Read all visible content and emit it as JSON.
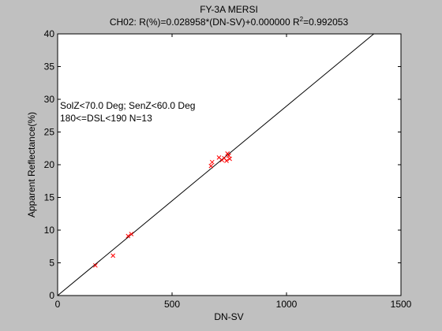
{
  "figure": {
    "background": "#c0c0c0",
    "plot_background": "#ffffff",
    "marker_color": "#ff0000",
    "line_color": "#000000"
  },
  "chart_data": {
    "type": "scatter",
    "title": "FY-3A MERSI",
    "subtitle_main": "CH02: R(%)=0.028958*(DN-SV)+0.000000 R",
    "subtitle_sup": "2",
    "subtitle_tail": "=0.992053",
    "xlabel": "DN-SV",
    "ylabel": "Apparent Reflectance(%)",
    "xlim": [
      0,
      1500
    ],
    "ylim": [
      0,
      40
    ],
    "xticks": [
      0,
      500,
      1000,
      1500
    ],
    "yticks": [
      0,
      5,
      10,
      15,
      20,
      25,
      30,
      35,
      40
    ],
    "grid": false,
    "fit_line": {
      "slope": 0.028958,
      "intercept": 0.0
    },
    "annotation_lines": [
      "SolZ<70.0 Deg; SenZ<60.0 Deg",
      "180<=DSL<190 N=13"
    ],
    "points": [
      {
        "x": 165,
        "y": 4.6
      },
      {
        "x": 242,
        "y": 6.1
      },
      {
        "x": 308,
        "y": 9.1
      },
      {
        "x": 322,
        "y": 9.4
      },
      {
        "x": 670,
        "y": 19.8
      },
      {
        "x": 675,
        "y": 20.4
      },
      {
        "x": 705,
        "y": 21.1
      },
      {
        "x": 718,
        "y": 20.7
      },
      {
        "x": 728,
        "y": 21.0
      },
      {
        "x": 738,
        "y": 20.6
      },
      {
        "x": 742,
        "y": 21.7
      },
      {
        "x": 748,
        "y": 21.4
      },
      {
        "x": 752,
        "y": 20.9
      }
    ]
  }
}
